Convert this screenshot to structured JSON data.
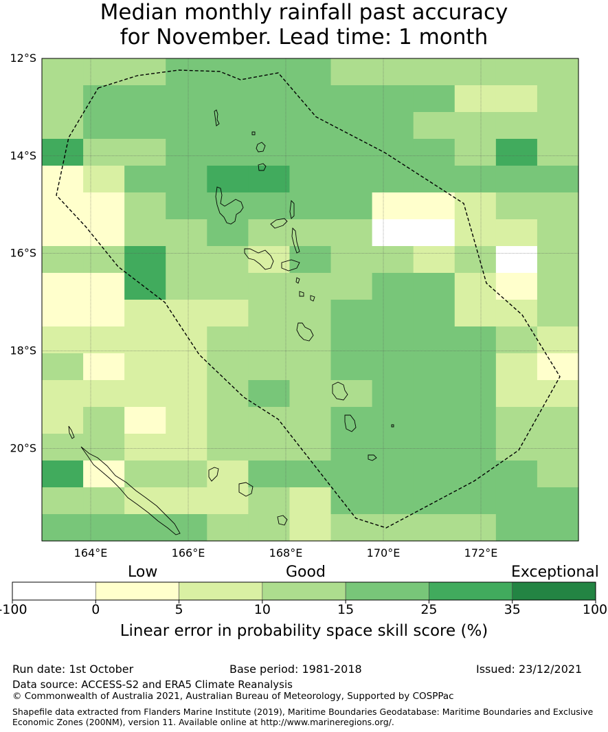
{
  "title": {
    "line1": "Median monthly rainfall past accuracy",
    "line2": "for November. Lead time: 1 month"
  },
  "map": {
    "lon_range": [
      163,
      174
    ],
    "lat_range": [
      -21.9,
      -12
    ],
    "lat_ticks": [
      {
        "value": -12,
        "label": "12°S"
      },
      {
        "value": -14,
        "label": "14°S"
      },
      {
        "value": -16,
        "label": "16°S"
      },
      {
        "value": -18,
        "label": "18°S"
      },
      {
        "value": -20,
        "label": "20°S"
      }
    ],
    "lon_ticks": [
      {
        "value": 164,
        "label": "164°E"
      },
      {
        "value": 166,
        "label": "166°E"
      },
      {
        "value": 168,
        "label": "168°E"
      },
      {
        "value": 170,
        "label": "170°E"
      },
      {
        "value": 172,
        "label": "172°E"
      }
    ],
    "category_colors": [
      "#ffffff",
      "#ffffcc",
      "#d9f0a3",
      "#addd8e",
      "#78c679",
      "#41ab5d",
      "#238443"
    ],
    "grid_cols": 13,
    "grid_rows": 18,
    "grid": [
      "3334444333333",
      "3444444444223",
      "3444444443333",
      "5334444444353",
      "1244554444444",
      "1134444411233",
      "1133433300223",
      "3353324332303",
      "1153333344213",
      "1122233444223",
      "2222333444432",
      "3122333444421",
      "2222343344422",
      "2312333444433",
      "3322333444433",
      "5133244444443",
      "3322232444444",
      "4444332333344"
    ]
  },
  "colorbar": {
    "level_labels": [
      "Low",
      "Good",
      "Exceptional"
    ],
    "tick_labels": [
      "-100",
      "0",
      "5",
      "10",
      "15",
      "25",
      "35",
      "100"
    ],
    "label": "Linear error in probability space skill score (%)"
  },
  "footer": {
    "run_date": "Run date: 1st October",
    "base_period": "Base period: 1981-2018",
    "issued": "Issued: 23/12/2021",
    "data_source": "Data source: ACCESS-S2 and ERA5 Climate Reanalysis",
    "copyright": "© Commonwealth of Australia 2021, Australian Bureau of Meteorology, Supported by COSPPac",
    "shapefile": "Shapefile data extracted from Flanders Marine Institute (2019), Maritime Boundaries Geodatabase: Maritime Boundaries and Exclusive Economic Zones (200NM), version 11. Available online at http://www.marineregions.org/."
  }
}
